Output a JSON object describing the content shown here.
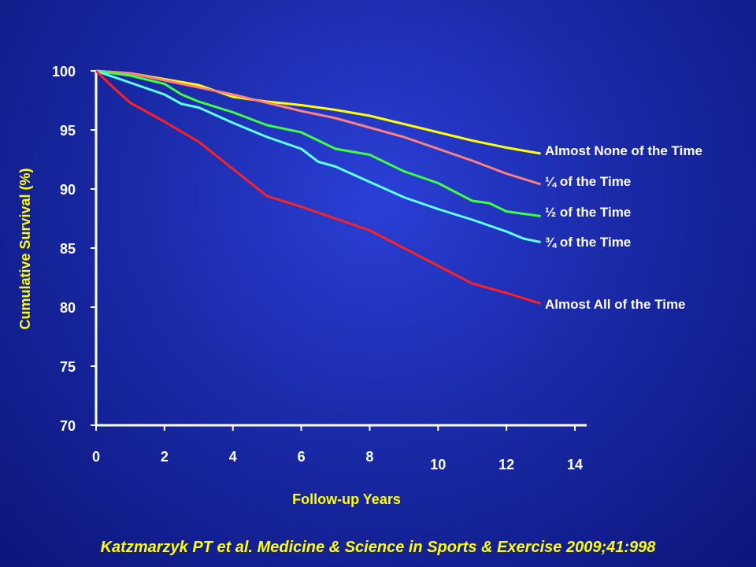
{
  "chart_data": {
    "type": "line",
    "xlabel": "Follow-up Years",
    "ylabel": "Cumulative Survival (%)",
    "xlim": [
      0,
      14
    ],
    "ylim": [
      70,
      100
    ],
    "x_ticks": [
      "0",
      "2",
      "4",
      "6",
      "8",
      "10",
      "12",
      "14"
    ],
    "y_ticks": [
      "100",
      "95",
      "90",
      "85",
      "80",
      "75",
      "70"
    ],
    "grid": false,
    "series": [
      {
        "name": "Almost None of the Time",
        "color": "#ffff00",
        "x": [
          0,
          1,
          2,
          3,
          4,
          5,
          6,
          7,
          8,
          9,
          10,
          11,
          12,
          13
        ],
        "y": [
          100,
          99.8,
          99.3,
          98.8,
          97.8,
          97.4,
          97.1,
          96.7,
          96.2,
          95.5,
          94.8,
          94.1,
          93.5,
          93.0
        ]
      },
      {
        "name": "¼ of the Time",
        "color": "#ff8080",
        "x": [
          0,
          1,
          2,
          3,
          4,
          5,
          6,
          7,
          8,
          9,
          10,
          11,
          12,
          13
        ],
        "y": [
          100,
          99.8,
          99.2,
          98.6,
          98.0,
          97.3,
          96.6,
          96.0,
          95.2,
          94.4,
          93.4,
          92.4,
          91.3,
          90.4
        ]
      },
      {
        "name": "½ of the Time",
        "color": "#40ff40",
        "x": [
          0,
          1,
          2,
          2.5,
          3,
          4,
          5,
          6,
          7,
          8,
          9,
          10,
          11,
          11.5,
          12,
          13
        ],
        "y": [
          100,
          99.6,
          98.9,
          98.0,
          97.4,
          96.5,
          95.4,
          94.8,
          93.4,
          92.9,
          91.5,
          90.5,
          89.0,
          88.8,
          88.1,
          87.7
        ]
      },
      {
        "name": "¾ of the Time",
        "color": "#60ffff",
        "x": [
          0,
          1,
          2,
          2.5,
          3,
          4,
          5,
          6,
          6.5,
          7,
          8,
          9,
          10,
          11,
          12,
          12.5,
          13
        ],
        "y": [
          100,
          99.0,
          98.0,
          97.2,
          96.9,
          95.6,
          94.4,
          93.4,
          92.3,
          91.9,
          90.6,
          89.3,
          88.3,
          87.4,
          86.4,
          85.8,
          85.5
        ]
      },
      {
        "name": "Almost All of the Time",
        "color": "#ff2020",
        "x": [
          0,
          0.5,
          1,
          2,
          3,
          4,
          5,
          6,
          7,
          8,
          9,
          10,
          11,
          12,
          13
        ],
        "y": [
          100,
          98.6,
          97.3,
          95.7,
          94.0,
          91.7,
          89.4,
          88.5,
          87.5,
          86.5,
          85.0,
          83.5,
          82.0,
          81.2,
          80.3
        ]
      }
    ]
  },
  "citation": "Katzmarzyk PT et al.  Medicine & Science in Sports & Exercise 2009;41:998"
}
